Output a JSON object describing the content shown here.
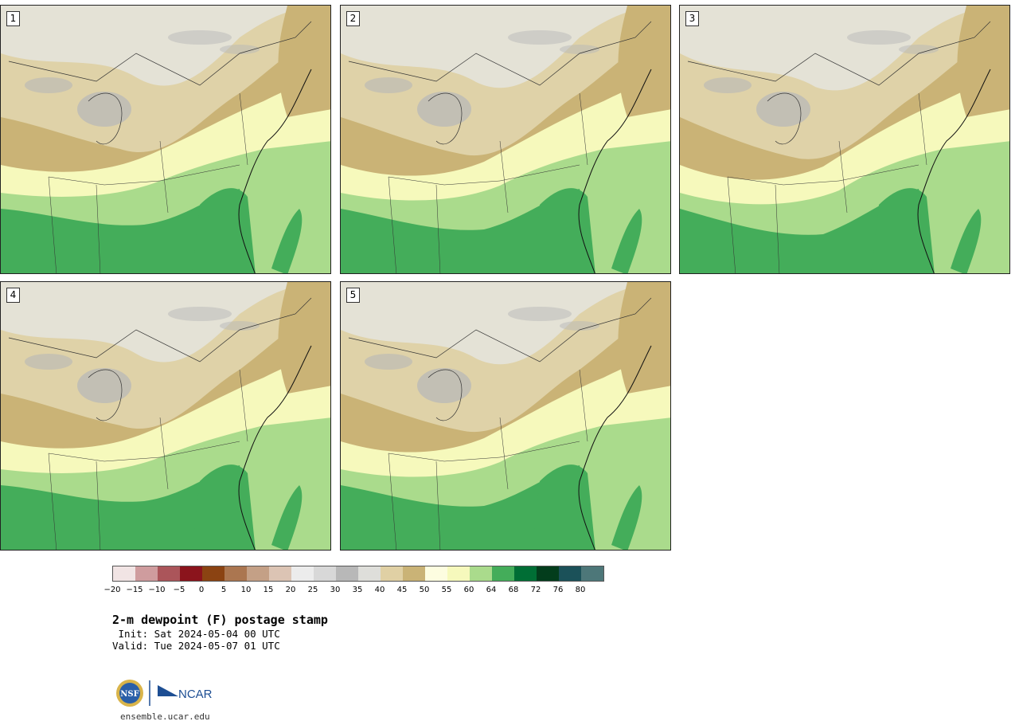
{
  "panels": [
    {
      "label": "1"
    },
    {
      "label": "2"
    },
    {
      "label": "3"
    },
    {
      "label": "4"
    },
    {
      "label": "5"
    }
  ],
  "colorbar": {
    "colors": [
      "#f1e4e4",
      "#cf9c9e",
      "#ab555a",
      "#8b141c",
      "#8b4312",
      "#ab7650",
      "#c4a086",
      "#dcc4b4",
      "#ececec",
      "#d8d8d8",
      "#b8b8b8",
      "#dededa",
      "#e0d0a4",
      "#cab376",
      "#fdfde0",
      "#f6f9bc",
      "#aadb8c",
      "#44ad5a",
      "#006e35",
      "#033d1c",
      "#1b5159",
      "#4d7779"
    ],
    "tick_labels": [
      "−20",
      "−15",
      "−10",
      "−5",
      "0",
      "5",
      "10",
      "15",
      "20",
      "25",
      "30",
      "35",
      "40",
      "45",
      "50",
      "55",
      "60",
      "64",
      "68",
      "72",
      "76",
      "80"
    ]
  },
  "title": "2-m dewpoint (F) postage stamp",
  "init": " Init: Sat 2024-05-04 00 UTC",
  "valid": "Valid: Tue 2024-05-07 01 UTC",
  "logos": {
    "left": "NSF",
    "right": "NCAR"
  },
  "url": "ensemble.ucar.edu"
}
